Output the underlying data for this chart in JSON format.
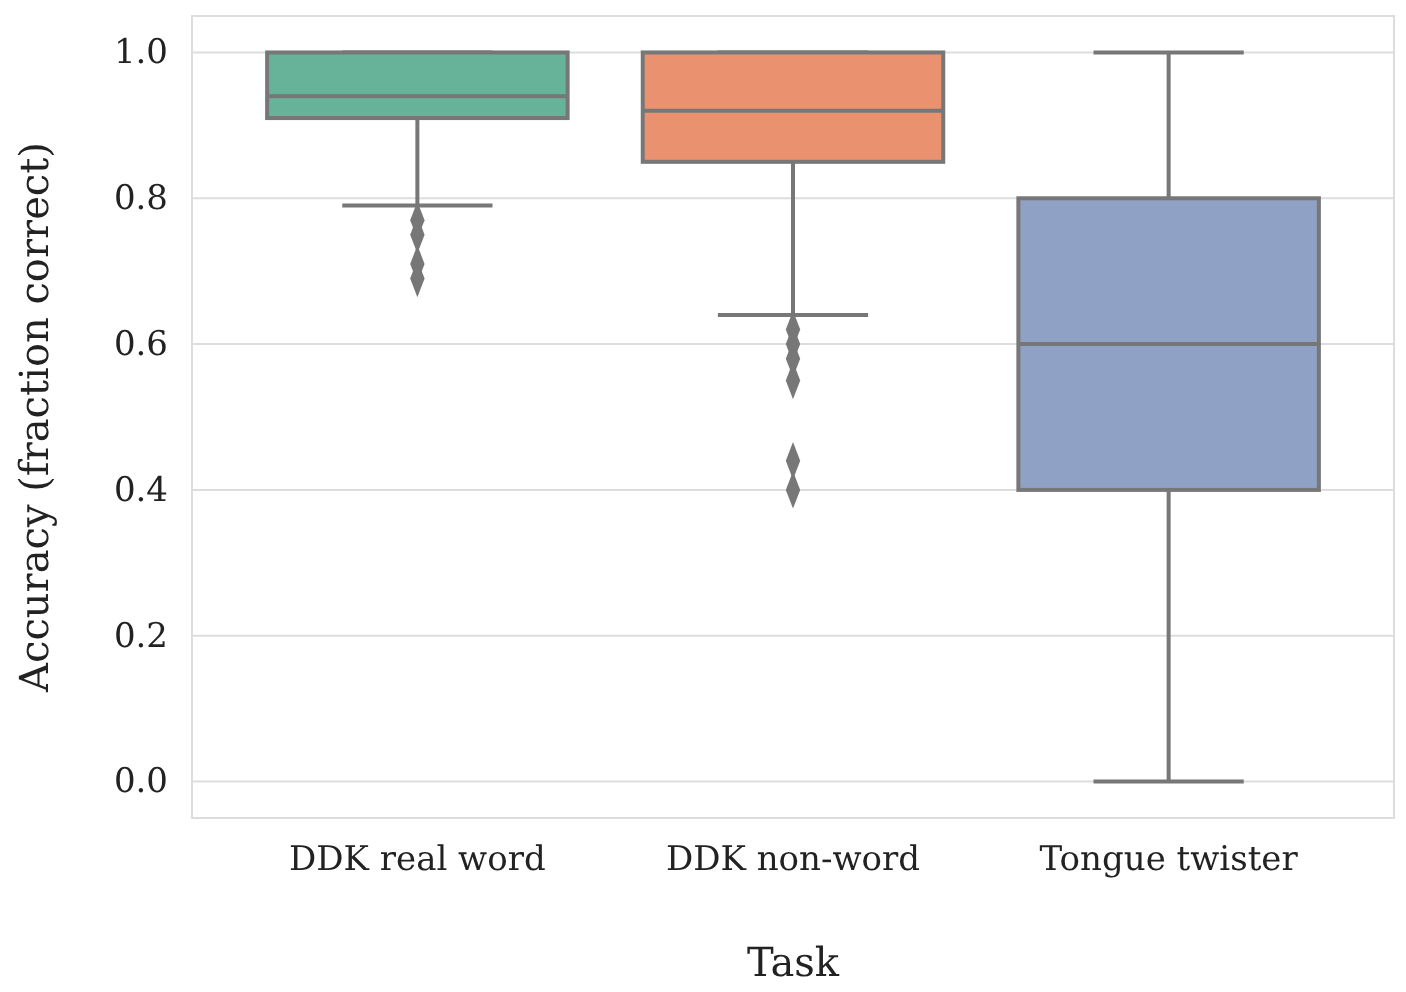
{
  "chart_data": {
    "type": "box",
    "xlabel": "Task",
    "ylabel": "Accuracy (fraction correct)",
    "categories": [
      "DDK real word",
      "DDK non-word",
      "Tongue twister"
    ],
    "colors": [
      "#66b39a",
      "#ea9170",
      "#8fa1c4"
    ],
    "boxes": [
      {
        "low": 0.79,
        "q1": 0.91,
        "median": 0.94,
        "q3": 1.0,
        "high": 1.0,
        "outliers": [
          0.77,
          0.75,
          0.71,
          0.69
        ]
      },
      {
        "low": 0.64,
        "q1": 0.85,
        "median": 0.92,
        "q3": 1.0,
        "high": 1.0,
        "outliers": [
          0.62,
          0.6,
          0.58,
          0.55,
          0.44,
          0.4
        ]
      },
      {
        "low": 0.0,
        "q1": 0.4,
        "median": 0.6,
        "q3": 0.8,
        "high": 1.0
      }
    ],
    "ylim": [
      -0.05,
      1.05
    ],
    "yticks": [
      {
        "value": 0,
        "label": "0.0"
      },
      0.2,
      0.4,
      0.6,
      0.8,
      {
        "value": 1,
        "label": "1.0"
      }
    ],
    "grid": "y",
    "marker": "diamond"
  }
}
